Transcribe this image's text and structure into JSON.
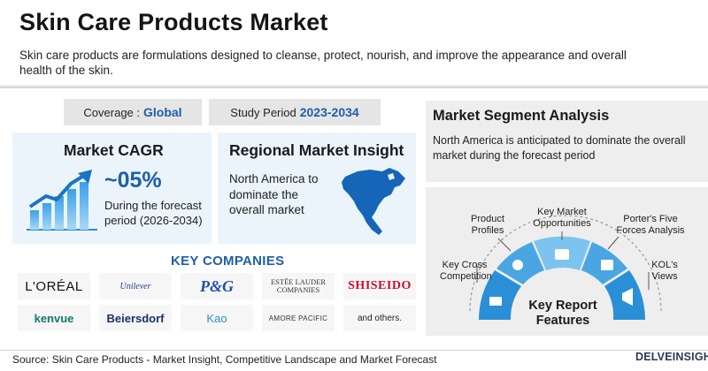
{
  "header": {
    "title": "Skin Care Products Market",
    "subtitle": "Skin care products are formulations designed to cleanse, protect, nourish, and improve the appearance and overall health of the skin."
  },
  "coverage": {
    "label": "Coverage :",
    "value": "Global"
  },
  "study_period": {
    "label": "Study Period",
    "value": "2023-2034"
  },
  "cagr": {
    "title": "Market CAGR",
    "value": "~05%",
    "description": "During the forecast period (2026-2034)",
    "icon": "bar-chart-growth-icon"
  },
  "regional": {
    "title": "Regional Market Insight",
    "text": "North America to dominate the overall market",
    "map_icon": "north-america-map-icon"
  },
  "segment": {
    "title": "Market Segment Analysis",
    "text": "North America is anticipated to dominate the overall market during the forecast period"
  },
  "features": {
    "center_title": "Key Report Features",
    "items": [
      {
        "label": "Key Cross Competition",
        "icon": "competition-icon"
      },
      {
        "label": "Product Profiles",
        "icon": "profile-search-icon"
      },
      {
        "label": "Key Market Opportunities",
        "icon": "opportunity-icon"
      },
      {
        "label": "Porter's Five Forces Analysis",
        "icon": "analysis-chart-icon"
      },
      {
        "label": "KOL's Views",
        "icon": "megaphone-icon"
      }
    ]
  },
  "companies": {
    "title": "KEY COMPANIES",
    "logos": [
      "L'ORÉAL",
      "Unilever",
      "P&G",
      "ESTĒE LAUDER COMPANIES",
      "SHISEIDO",
      "kenvue",
      "Beiersdorf",
      "Kao",
      "AMORE PACIFIC",
      "and others."
    ]
  },
  "footer": {
    "source": "Source: Skin Care Products - Market Insight, Competitive Landscape and Market Forecast",
    "brand": "DELVEINSIGHT"
  },
  "colors": {
    "accent": "#1f5fa8",
    "panel_blue": "#eaf4fa",
    "panel_gray": "#eeeeee",
    "feature_blue": "#2a8fd6"
  }
}
